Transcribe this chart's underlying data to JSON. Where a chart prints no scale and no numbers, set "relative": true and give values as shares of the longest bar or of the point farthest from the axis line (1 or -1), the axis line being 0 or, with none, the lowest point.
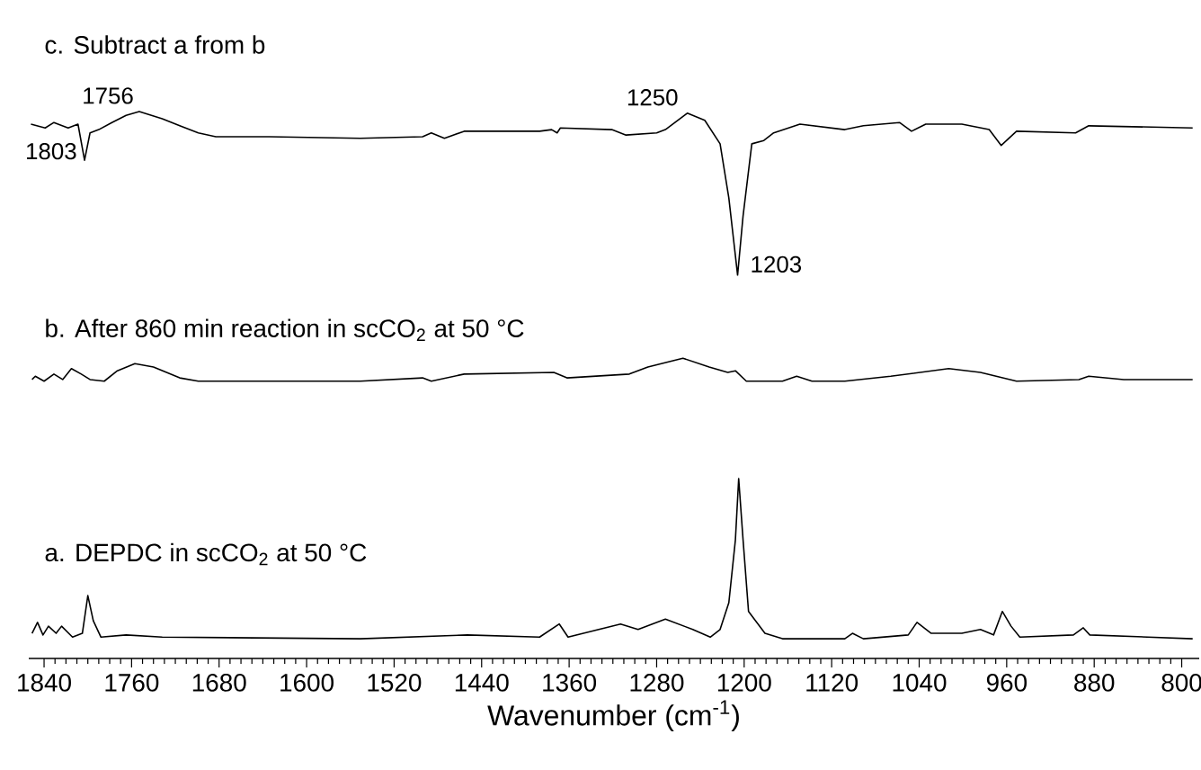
{
  "chart_data": {
    "type": "line",
    "relative": true,
    "xlabel": "Wavenumber (cm$^{-1}$)",
    "xlim": [
      1854,
      784
    ],
    "xticks": [
      1840,
      1760,
      1680,
      1600,
      1520,
      1440,
      1360,
      1280,
      1200,
      1120,
      1040,
      960,
      880,
      800
    ],
    "legend": false,
    "grid": false,
    "tick_labels": "x",
    "marker": "none",
    "line_style": "solid",
    "series": [
      {
        "name": "c. Subtract a from b",
        "color": "#000000",
        "x": [
          1852,
          1839,
          1831,
          1818,
          1809,
          1803,
          1798,
          1790,
          1778,
          1765,
          1753,
          1732,
          1716,
          1699,
          1683,
          1634,
          1551,
          1494,
          1486,
          1474,
          1456,
          1387,
          1376,
          1371,
          1368,
          1321,
          1308,
          1280,
          1272,
          1252,
          1236,
          1222,
          1214,
          1206,
          1201,
          1193,
          1182,
          1173,
          1149,
          1108,
          1091,
          1058,
          1047,
          1034,
          1001,
          976,
          965,
          951,
          897,
          885,
          790
        ],
        "values": [
          0.977,
          0.97,
          0.98,
          0.97,
          0.977,
          0.911,
          0.961,
          0.967,
          0.98,
          0.993,
          1.0,
          0.987,
          0.974,
          0.961,
          0.954,
          0.954,
          0.951,
          0.954,
          0.961,
          0.951,
          0.964,
          0.964,
          0.967,
          0.961,
          0.97,
          0.967,
          0.957,
          0.961,
          0.967,
          0.997,
          0.984,
          0.941,
          0.842,
          0.701,
          0.809,
          0.941,
          0.947,
          0.961,
          0.977,
          0.967,
          0.974,
          0.98,
          0.964,
          0.977,
          0.977,
          0.967,
          0.938,
          0.964,
          0.961,
          0.974,
          0.97
        ]
      },
      {
        "name": "b. After 860 min reaction in scCO$_{2}$ at 50 °C",
        "color": "#000000",
        "x": [
          1851,
          1848,
          1840,
          1831,
          1823,
          1815,
          1806,
          1798,
          1785,
          1773,
          1757,
          1740,
          1716,
          1699,
          1634,
          1551,
          1494,
          1486,
          1456,
          1374,
          1362,
          1305,
          1288,
          1256,
          1232,
          1215,
          1208,
          1198,
          1165,
          1152,
          1138,
          1108,
          1066,
          1013,
          984,
          951,
          894,
          885,
          853,
          790
        ],
        "values": [
          0.51,
          0.516,
          0.507,
          0.52,
          0.51,
          0.53,
          0.52,
          0.51,
          0.507,
          0.526,
          0.539,
          0.533,
          0.513,
          0.507,
          0.507,
          0.507,
          0.513,
          0.507,
          0.52,
          0.523,
          0.513,
          0.52,
          0.533,
          0.549,
          0.533,
          0.523,
          0.526,
          0.507,
          0.507,
          0.516,
          0.507,
          0.507,
          0.516,
          0.53,
          0.523,
          0.507,
          0.51,
          0.516,
          0.51,
          0.51
        ]
      },
      {
        "name": "a. DEPDC in scCO$_{2}$ at 50 °C",
        "color": "#000000",
        "x": [
          1851,
          1846,
          1841,
          1836,
          1829,
          1824,
          1814,
          1805,
          1800,
          1795,
          1788,
          1765,
          1732,
          1551,
          1453,
          1387,
          1369,
          1361,
          1313,
          1297,
          1272,
          1247,
          1231,
          1222,
          1214,
          1208,
          1205,
          1201,
          1196,
          1181,
          1165,
          1108,
          1101,
          1091,
          1050,
          1042,
          1029,
          1001,
          984,
          972,
          964,
          956,
          948,
          899,
          890,
          884,
          790
        ],
        "values": [
          0.046,
          0.066,
          0.043,
          0.059,
          0.046,
          0.059,
          0.039,
          0.046,
          0.115,
          0.069,
          0.039,
          0.043,
          0.039,
          0.036,
          0.043,
          0.039,
          0.063,
          0.039,
          0.063,
          0.053,
          0.072,
          0.053,
          0.039,
          0.053,
          0.102,
          0.217,
          0.329,
          0.217,
          0.086,
          0.046,
          0.036,
          0.036,
          0.046,
          0.036,
          0.043,
          0.066,
          0.046,
          0.046,
          0.053,
          0.043,
          0.086,
          0.059,
          0.039,
          0.043,
          0.056,
          0.043,
          0.036
        ]
      }
    ],
    "annotations": [
      {
        "text": "1756",
        "x": 1756,
        "y": 1.0
      },
      {
        "text": "1803",
        "x": 1803,
        "y": 0.911
      },
      {
        "text": "1250",
        "x": 1250,
        "y": 0.997
      },
      {
        "text": "1203",
        "x": 1203,
        "y": 0.701
      }
    ]
  }
}
